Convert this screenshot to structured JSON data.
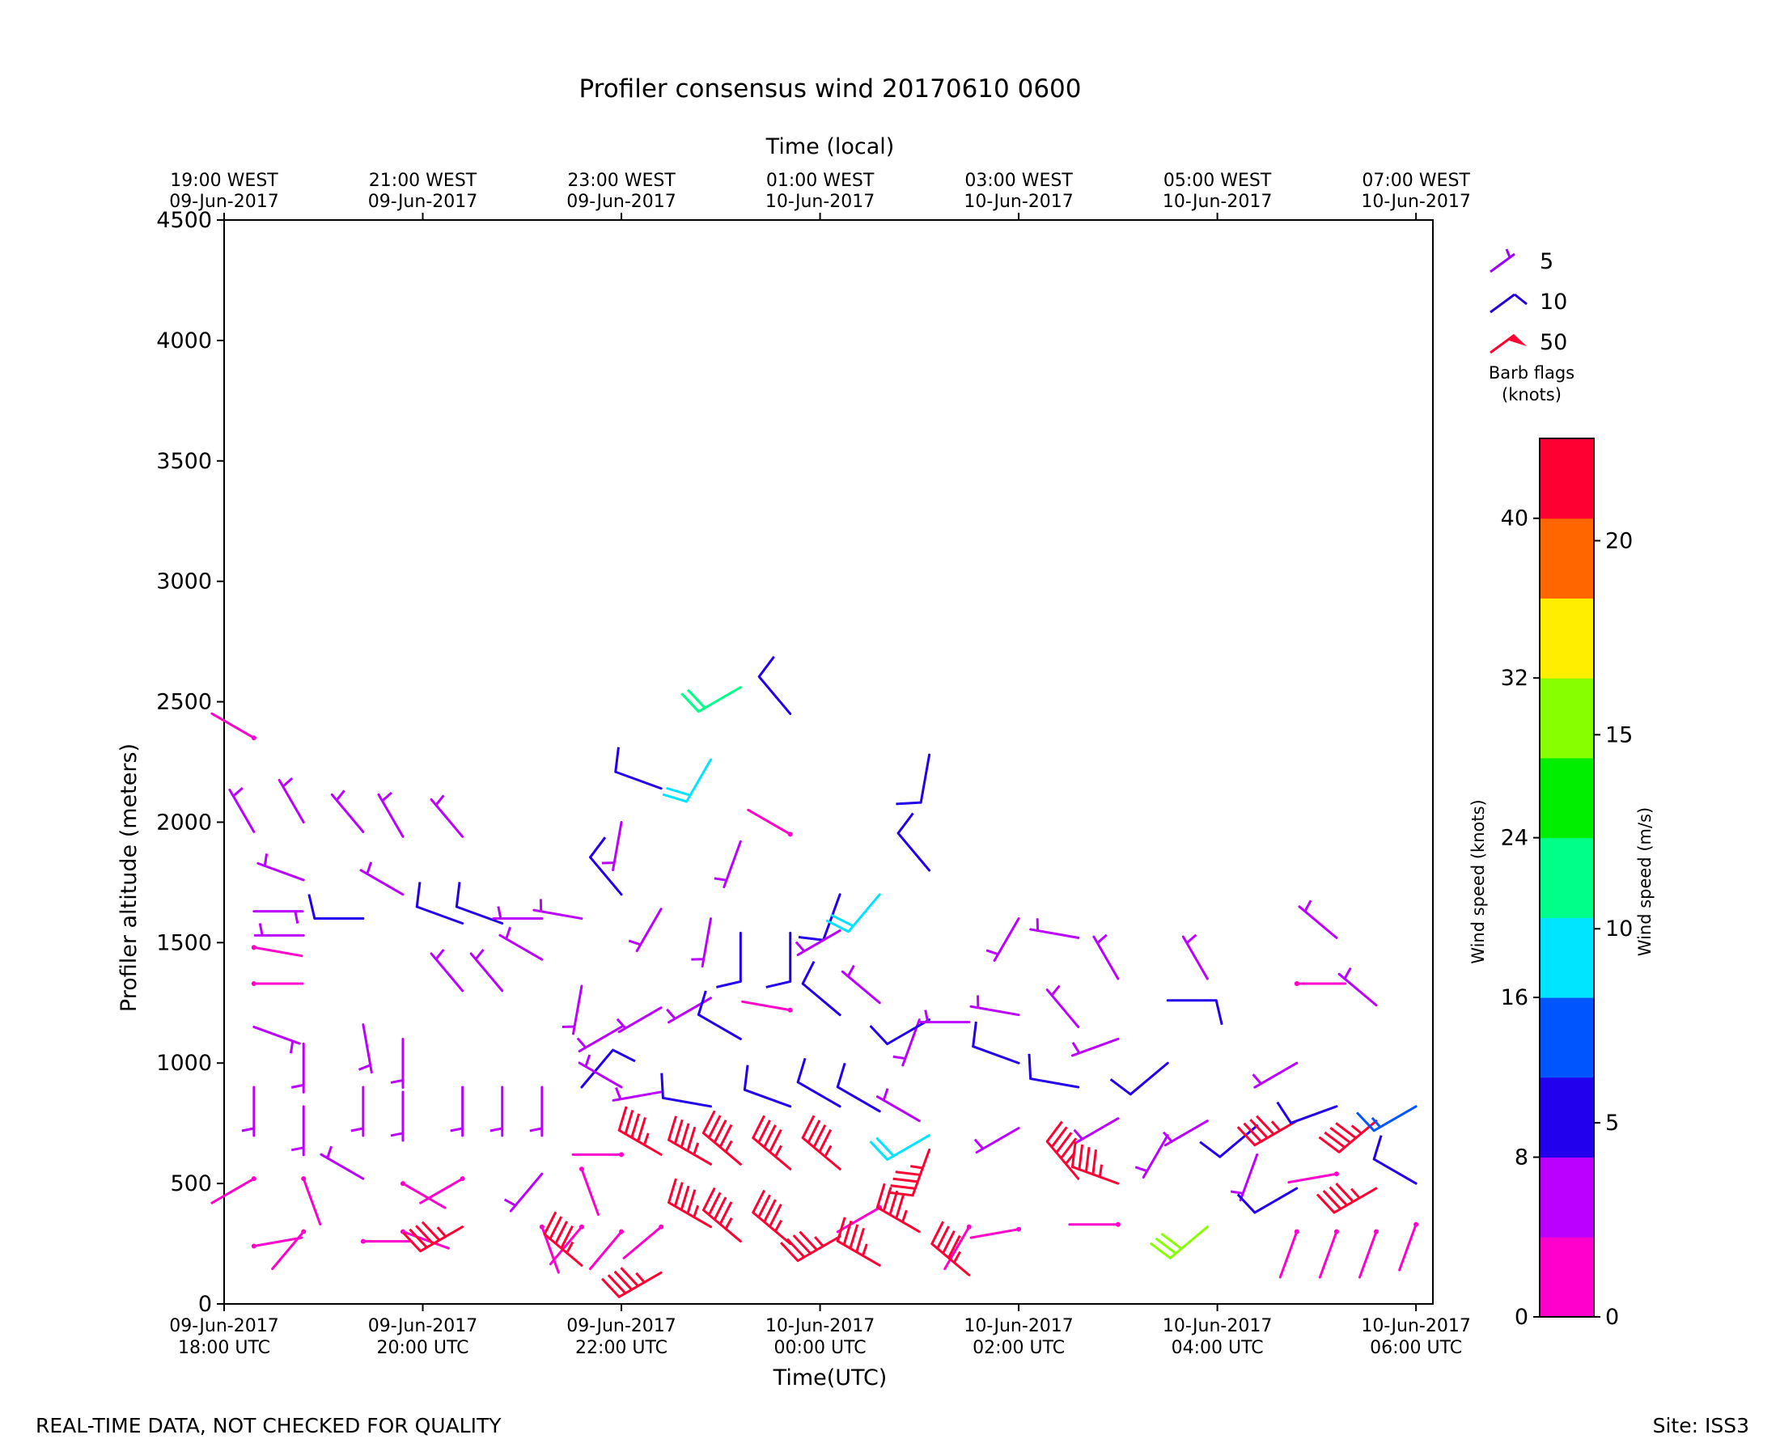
{
  "footer": {
    "notice": "REAL-TIME DATA, NOT CHECKED FOR QUALITY",
    "site": "Site: ISS3"
  },
  "chart_data": {
    "type": "wind-barbs",
    "title": "Profiler consensus wind 20170610 0600",
    "xlabel": "Time(UTC)",
    "x2label": "Time (local)",
    "ylabel": "Profiler altitude (meters)",
    "x_range_hours_utc": [
      0,
      12.17
    ],
    "x_start": "09-Jun-2017 18:00 UTC",
    "ylim": [
      0,
      4500
    ],
    "yticks": [
      0,
      500,
      1000,
      1500,
      2000,
      2500,
      3000,
      3500,
      4000,
      4500
    ],
    "xticks_utc": [
      {
        "h": 0,
        "line1": "09-Jun-2017",
        "line2": "18:00 UTC"
      },
      {
        "h": 2,
        "line1": "09-Jun-2017",
        "line2": "20:00 UTC"
      },
      {
        "h": 4,
        "line1": "09-Jun-2017",
        "line2": "22:00 UTC"
      },
      {
        "h": 6,
        "line1": "10-Jun-2017",
        "line2": "00:00 UTC"
      },
      {
        "h": 8,
        "line1": "10-Jun-2017",
        "line2": "02:00 UTC"
      },
      {
        "h": 10,
        "line1": "10-Jun-2017",
        "line2": "04:00 UTC"
      },
      {
        "h": 12,
        "line1": "10-Jun-2017",
        "line2": "06:00 UTC"
      }
    ],
    "xticks_local": [
      {
        "h": 0,
        "line1": "19:00 WEST",
        "line2": "09-Jun-2017"
      },
      {
        "h": 2,
        "line1": "21:00 WEST",
        "line2": "09-Jun-2017"
      },
      {
        "h": 4,
        "line1": "23:00 WEST",
        "line2": "09-Jun-2017"
      },
      {
        "h": 6,
        "line1": "01:00 WEST",
        "line2": "10-Jun-2017"
      },
      {
        "h": 8,
        "line1": "03:00 WEST",
        "line2": "10-Jun-2017"
      },
      {
        "h": 10,
        "line1": "05:00 WEST",
        "line2": "10-Jun-2017"
      },
      {
        "h": 12,
        "line1": "07:00 WEST",
        "line2": "10-Jun-2017"
      }
    ],
    "legend": {
      "title_line1": "Barb flags",
      "title_line2": "(knots)",
      "items": [
        {
          "label": "5",
          "color": "#9b00ff"
        },
        {
          "label": "10",
          "color": "#2200dd"
        },
        {
          "label": "50",
          "color": "#ff0033"
        }
      ]
    },
    "colorbar": {
      "label_knots": "Wind speed (knots)",
      "label_ms": "Wind speed (m/s)",
      "knot_ticks": [
        "0",
        "8",
        "16",
        "24",
        "32",
        "40"
      ],
      "ms_ticks": [
        "0",
        "5",
        "10",
        "15",
        "20"
      ],
      "colors": [
        "#ff00cc",
        "#bb00ff",
        "#2200ee",
        "#0055ff",
        "#00e5ff",
        "#00ff88",
        "#00ee00",
        "#88ff00",
        "#ffee00",
        "#ff6600",
        "#ff0033"
      ]
    },
    "series": [
      {
        "h": 0.3,
        "barbs": [
          {
            "alt": 2350,
            "dir": 300,
            "spd": 2
          },
          {
            "alt": 1960,
            "dir": 330,
            "spd": 6
          },
          {
            "alt": 1630,
            "dir": 90,
            "spd": 5
          },
          {
            "alt": 1480,
            "dir": 100,
            "spd": 2
          },
          {
            "alt": 1330,
            "dir": 90,
            "spd": 2
          },
          {
            "alt": 1150,
            "dir": 110,
            "spd": 4
          },
          {
            "alt": 900,
            "dir": 180,
            "spd": 6
          },
          {
            "alt": 520,
            "dir": 240,
            "spd": 2
          },
          {
            "alt": 240,
            "dir": 80,
            "spd": 2
          }
        ]
      },
      {
        "h": 0.8,
        "barbs": [
          {
            "alt": 2000,
            "dir": 330,
            "spd": 6
          },
          {
            "alt": 1760,
            "dir": 290,
            "spd": 6
          },
          {
            "alt": 1530,
            "dir": 270,
            "spd": 6
          },
          {
            "alt": 1080,
            "dir": 180,
            "spd": 6
          },
          {
            "alt": 820,
            "dir": 180,
            "spd": 5
          },
          {
            "alt": 520,
            "dir": 160,
            "spd": 2
          },
          {
            "alt": 300,
            "dir": 220,
            "spd": 2
          }
        ]
      },
      {
        "h": 1.4,
        "barbs": [
          {
            "alt": 1960,
            "dir": 320,
            "spd": 6
          },
          {
            "alt": 1600,
            "dir": 270,
            "spd": 10
          },
          {
            "alt": 1160,
            "dir": 170,
            "spd": 6
          },
          {
            "alt": 900,
            "dir": 180,
            "spd": 6
          },
          {
            "alt": 520,
            "dir": 300,
            "spd": 6
          },
          {
            "alt": 260,
            "dir": 90,
            "spd": 2
          }
        ]
      },
      {
        "h": 1.8,
        "barbs": [
          {
            "alt": 1940,
            "dir": 330,
            "spd": 6
          },
          {
            "alt": 1700,
            "dir": 300,
            "spd": 6
          },
          {
            "alt": 1100,
            "dir": 180,
            "spd": 6
          },
          {
            "alt": 880,
            "dir": 180,
            "spd": 6
          },
          {
            "alt": 500,
            "dir": 120,
            "spd": 2
          },
          {
            "alt": 300,
            "dir": 110,
            "spd": 2
          }
        ]
      },
      {
        "h": 2.4,
        "barbs": [
          {
            "alt": 1940,
            "dir": 320,
            "spd": 6
          },
          {
            "alt": 1580,
            "dir": 290,
            "spd": 10
          },
          {
            "alt": 1300,
            "dir": 320,
            "spd": 6
          },
          {
            "alt": 900,
            "dir": 180,
            "spd": 5
          },
          {
            "alt": 520,
            "dir": 240,
            "spd": 2
          },
          {
            "alt": 320,
            "dir": 240,
            "spd": 45
          }
        ]
      },
      {
        "h": 2.8,
        "barbs": [
          {
            "alt": 1580,
            "dir": 290,
            "spd": 10
          },
          {
            "alt": 1300,
            "dir": 320,
            "spd": 6
          },
          {
            "alt": 900,
            "dir": 180,
            "spd": 6
          }
        ]
      },
      {
        "h": 3.2,
        "barbs": [
          {
            "alt": 1600,
            "dir": 270,
            "spd": 5
          },
          {
            "alt": 1430,
            "dir": 300,
            "spd": 5
          },
          {
            "alt": 900,
            "dir": 180,
            "spd": 6
          },
          {
            "alt": 540,
            "dir": 220,
            "spd": 6
          },
          {
            "alt": 320,
            "dir": 160,
            "spd": 2
          }
        ]
      },
      {
        "h": 3.6,
        "barbs": [
          {
            "alt": 1600,
            "dir": 280,
            "spd": 5
          },
          {
            "alt": 1320,
            "dir": 190,
            "spd": 5
          },
          {
            "alt": 900,
            "dir": 40,
            "spd": 10
          },
          {
            "alt": 560,
            "dir": 160,
            "spd": 2
          },
          {
            "alt": 320,
            "dir": 220,
            "spd": 2
          },
          {
            "alt": 160,
            "dir": 310,
            "spd": 45
          }
        ]
      },
      {
        "h": 4.0,
        "barbs": [
          {
            "alt": 2000,
            "dir": 190,
            "spd": 6
          },
          {
            "alt": 1700,
            "dir": 320,
            "spd": 10
          },
          {
            "alt": 1150,
            "dir": 240,
            "spd": 6
          },
          {
            "alt": 900,
            "dir": 300,
            "spd": 6
          },
          {
            "alt": 620,
            "dir": 270,
            "spd": 2
          },
          {
            "alt": 300,
            "dir": 220,
            "spd": 2
          }
        ]
      },
      {
        "h": 4.4,
        "barbs": [
          {
            "alt": 2140,
            "dir": 290,
            "spd": 10
          },
          {
            "alt": 1640,
            "dir": 210,
            "spd": 6
          },
          {
            "alt": 1230,
            "dir": 240,
            "spd": 6
          },
          {
            "alt": 880,
            "dir": 260,
            "spd": 6
          },
          {
            "alt": 620,
            "dir": 300,
            "spd": 45
          },
          {
            "alt": 320,
            "dir": 230,
            "spd": 2
          },
          {
            "alt": 130,
            "dir": 240,
            "spd": 45
          }
        ]
      },
      {
        "h": 4.9,
        "barbs": [
          {
            "alt": 2260,
            "dir": 210,
            "spd": 18
          },
          {
            "alt": 1600,
            "dir": 190,
            "spd": 6
          },
          {
            "alt": 1270,
            "dir": 240,
            "spd": 6
          },
          {
            "alt": 820,
            "dir": 280,
            "spd": 10
          },
          {
            "alt": 580,
            "dir": 300,
            "spd": 45
          },
          {
            "alt": 320,
            "dir": 300,
            "spd": 45
          }
        ]
      },
      {
        "h": 5.2,
        "barbs": [
          {
            "alt": 2560,
            "dir": 240,
            "spd": 22
          },
          {
            "alt": 1920,
            "dir": 200,
            "spd": 6
          },
          {
            "alt": 1540,
            "dir": 180,
            "spd": 10
          },
          {
            "alt": 1100,
            "dir": 300,
            "spd": 10
          },
          {
            "alt": 580,
            "dir": 310,
            "spd": 45
          },
          {
            "alt": 260,
            "dir": 310,
            "spd": 45
          }
        ]
      },
      {
        "h": 5.7,
        "barbs": [
          {
            "alt": 2450,
            "dir": 320,
            "spd": 10
          },
          {
            "alt": 1950,
            "dir": 300,
            "spd": 2
          },
          {
            "alt": 1540,
            "dir": 180,
            "spd": 10
          },
          {
            "alt": 1220,
            "dir": 280,
            "spd": 2
          },
          {
            "alt": 820,
            "dir": 290,
            "spd": 10
          },
          {
            "alt": 560,
            "dir": 310,
            "spd": 45
          },
          {
            "alt": 250,
            "dir": 310,
            "spd": 45
          }
        ]
      },
      {
        "h": 6.2,
        "barbs": [
          {
            "alt": 1700,
            "dir": 200,
            "spd": 10
          },
          {
            "alt": 1550,
            "dir": 240,
            "spd": 6
          },
          {
            "alt": 1200,
            "dir": 310,
            "spd": 10
          },
          {
            "alt": 820,
            "dir": 300,
            "spd": 10
          },
          {
            "alt": 560,
            "dir": 310,
            "spd": 45
          },
          {
            "alt": 280,
            "dir": 240,
            "spd": 45
          }
        ]
      },
      {
        "h": 6.6,
        "barbs": [
          {
            "alt": 1700,
            "dir": 220,
            "spd": 18
          },
          {
            "alt": 1250,
            "dir": 310,
            "spd": 6
          },
          {
            "alt": 800,
            "dir": 300,
            "spd": 10
          },
          {
            "alt": 400,
            "dir": 240,
            "spd": 2
          },
          {
            "alt": 160,
            "dir": 300,
            "spd": 45
          }
        ]
      },
      {
        "h": 7.0,
        "barbs": [
          {
            "alt": 1180,
            "dir": 200,
            "spd": 6
          },
          {
            "alt": 760,
            "dir": 300,
            "spd": 6
          },
          {
            "alt": 300,
            "dir": 300,
            "spd": 45
          }
        ]
      },
      {
        "h": 7.1,
        "barbs": [
          {
            "alt": 2280,
            "dir": 190,
            "spd": 10
          },
          {
            "alt": 1800,
            "dir": 320,
            "spd": 10
          },
          {
            "alt": 1180,
            "dir": 240,
            "spd": 10
          },
          {
            "alt": 700,
            "dir": 240,
            "spd": 18
          },
          {
            "alt": 640,
            "dir": 200,
            "spd": 45
          }
        ]
      },
      {
        "h": 7.5,
        "barbs": [
          {
            "alt": 1170,
            "dir": 270,
            "spd": 6
          },
          {
            "alt": 320,
            "dir": 210,
            "spd": 2
          },
          {
            "alt": 120,
            "dir": 310,
            "spd": 45
          }
        ]
      },
      {
        "h": 8.0,
        "barbs": [
          {
            "alt": 1600,
            "dir": 210,
            "spd": 6
          },
          {
            "alt": 1200,
            "dir": 280,
            "spd": 6
          },
          {
            "alt": 1000,
            "dir": 290,
            "spd": 10
          },
          {
            "alt": 730,
            "dir": 240,
            "spd": 6
          },
          {
            "alt": 310,
            "dir": 260,
            "spd": 2
          }
        ]
      },
      {
        "h": 8.6,
        "barbs": [
          {
            "alt": 1520,
            "dir": 280,
            "spd": 6
          },
          {
            "alt": 1150,
            "dir": 320,
            "spd": 6
          },
          {
            "alt": 900,
            "dir": 280,
            "spd": 10
          },
          {
            "alt": 520,
            "dir": 320,
            "spd": 45
          }
        ]
      },
      {
        "h": 9.0,
        "barbs": [
          {
            "alt": 1350,
            "dir": 330,
            "spd": 6
          },
          {
            "alt": 1100,
            "dir": 250,
            "spd": 6
          },
          {
            "alt": 770,
            "dir": 240,
            "spd": 6
          },
          {
            "alt": 500,
            "dir": 290,
            "spd": 45
          },
          {
            "alt": 330,
            "dir": 270,
            "spd": 2
          }
        ]
      },
      {
        "h": 9.5,
        "barbs": [
          {
            "alt": 1260,
            "dir": 90,
            "spd": 10
          },
          {
            "alt": 1000,
            "dir": 230,
            "spd": 10
          },
          {
            "alt": 700,
            "dir": 210,
            "spd": 6
          }
        ]
      },
      {
        "h": 9.9,
        "barbs": [
          {
            "alt": 1350,
            "dir": 330,
            "spd": 6
          },
          {
            "alt": 760,
            "dir": 240,
            "spd": 6
          },
          {
            "alt": 320,
            "dir": 230,
            "spd": 30
          }
        ]
      },
      {
        "h": 10.4,
        "barbs": [
          {
            "alt": 740,
            "dir": 230,
            "spd": 10
          },
          {
            "alt": 620,
            "dir": 200,
            "spd": 6
          }
        ]
      },
      {
        "h": 10.8,
        "barbs": [
          {
            "alt": 1330,
            "dir": 90,
            "spd": 2
          },
          {
            "alt": 1000,
            "dir": 240,
            "spd": 6
          },
          {
            "alt": 760,
            "dir": 240,
            "spd": 45
          },
          {
            "alt": 480,
            "dir": 240,
            "spd": 10
          },
          {
            "alt": 300,
            "dir": 200,
            "spd": 2
          }
        ]
      },
      {
        "h": 11.2,
        "barbs": [
          {
            "alt": 1520,
            "dir": 310,
            "spd": 6
          },
          {
            "alt": 820,
            "dir": 250,
            "spd": 10
          },
          {
            "alt": 540,
            "dir": 260,
            "spd": 2
          },
          {
            "alt": 300,
            "dir": 200,
            "spd": 2
          }
        ]
      },
      {
        "h": 11.6,
        "barbs": [
          {
            "alt": 1240,
            "dir": 310,
            "spd": 6
          },
          {
            "alt": 760,
            "dir": 230,
            "spd": 45
          },
          {
            "alt": 480,
            "dir": 240,
            "spd": 45
          },
          {
            "alt": 300,
            "dir": 200,
            "spd": 2
          }
        ]
      },
      {
        "h": 12.0,
        "barbs": [
          {
            "alt": 820,
            "dir": 240,
            "spd": 14
          },
          {
            "alt": 500,
            "dir": 300,
            "spd": 10
          },
          {
            "alt": 330,
            "dir": 200,
            "spd": 2
          }
        ]
      }
    ]
  }
}
